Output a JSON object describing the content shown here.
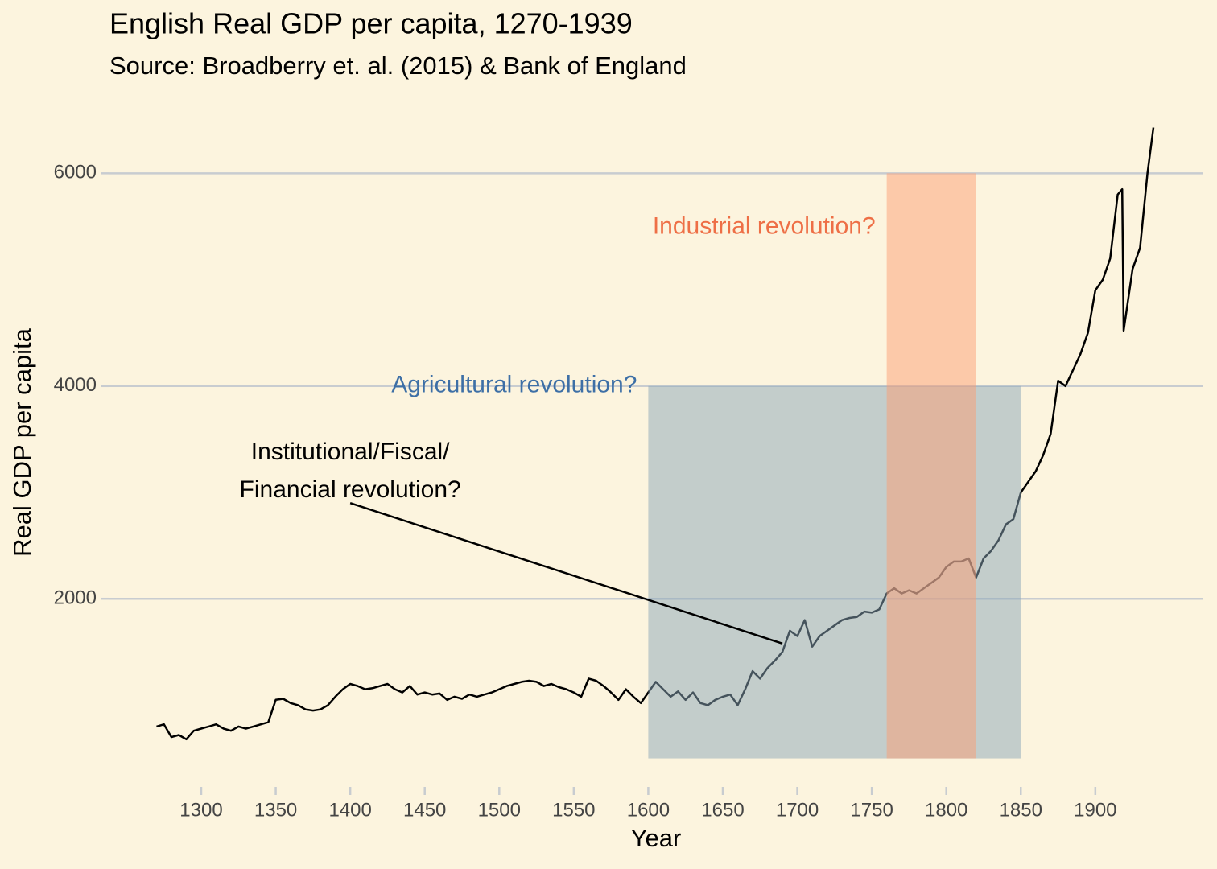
{
  "chart_data": {
    "type": "line",
    "title": "English Real GDP per capita, 1270-1939",
    "subtitle": "Source: Broadberry et. al. (2015) & Bank of England",
    "xlabel": "Year",
    "ylabel": "Real GDP per capita",
    "xlim": [
      1263,
      1946
    ],
    "ylim": [
      300,
      6600
    ],
    "xticks": [
      1300,
      1350,
      1400,
      1450,
      1500,
      1550,
      1600,
      1650,
      1700,
      1750,
      1800,
      1850,
      1900
    ],
    "yticks": [
      2000,
      4000,
      6000
    ],
    "grid": true,
    "x": [
      1270,
      1275,
      1280,
      1285,
      1290,
      1295,
      1300,
      1305,
      1310,
      1315,
      1320,
      1325,
      1330,
      1335,
      1340,
      1345,
      1350,
      1355,
      1360,
      1365,
      1370,
      1375,
      1380,
      1385,
      1390,
      1395,
      1400,
      1405,
      1410,
      1415,
      1420,
      1425,
      1430,
      1435,
      1440,
      1445,
      1450,
      1455,
      1460,
      1465,
      1470,
      1475,
      1480,
      1485,
      1490,
      1495,
      1500,
      1505,
      1510,
      1515,
      1520,
      1525,
      1530,
      1535,
      1540,
      1545,
      1550,
      1555,
      1560,
      1565,
      1570,
      1575,
      1580,
      1585,
      1590,
      1595,
      1600,
      1605,
      1610,
      1615,
      1620,
      1625,
      1630,
      1635,
      1640,
      1645,
      1650,
      1655,
      1660,
      1665,
      1670,
      1675,
      1680,
      1685,
      1690,
      1695,
      1700,
      1705,
      1710,
      1715,
      1720,
      1725,
      1730,
      1735,
      1740,
      1745,
      1750,
      1755,
      1760,
      1765,
      1770,
      1775,
      1780,
      1785,
      1790,
      1795,
      1800,
      1805,
      1810,
      1815,
      1820,
      1825,
      1830,
      1835,
      1840,
      1845,
      1850,
      1855,
      1860,
      1865,
      1870,
      1875,
      1880,
      1885,
      1890,
      1895,
      1900,
      1905,
      1910,
      1915,
      1918,
      1919,
      1925,
      1930,
      1935,
      1939
    ],
    "series": [
      {
        "name": "Real GDP per capita",
        "color": "#000000",
        "values": [
          800,
          820,
          700,
          720,
          680,
          760,
          780,
          800,
          820,
          780,
          760,
          800,
          780,
          800,
          820,
          840,
          1050,
          1060,
          1020,
          1000,
          960,
          950,
          960,
          1000,
          1080,
          1150,
          1200,
          1180,
          1150,
          1160,
          1180,
          1200,
          1150,
          1120,
          1180,
          1100,
          1120,
          1100,
          1110,
          1050,
          1080,
          1060,
          1100,
          1080,
          1100,
          1120,
          1150,
          1180,
          1200,
          1220,
          1230,
          1220,
          1180,
          1200,
          1170,
          1150,
          1120,
          1080,
          1250,
          1230,
          1180,
          1120,
          1050,
          1150,
          1080,
          1020,
          1120,
          1220,
          1150,
          1080,
          1130,
          1050,
          1120,
          1020,
          1000,
          1050,
          1080,
          1100,
          1000,
          1150,
          1320,
          1250,
          1350,
          1420,
          1500,
          1700,
          1650,
          1800,
          1550,
          1650,
          1700,
          1750,
          1800,
          1820,
          1830,
          1880,
          1870,
          1900,
          2050,
          2100,
          2050,
          2080,
          2050,
          2100,
          2150,
          2200,
          2300,
          2350,
          2350,
          2380,
          2200,
          2380,
          2450,
          2550,
          2700,
          2750,
          3000,
          3100,
          3200,
          3350,
          3550,
          4050,
          4000,
          4150,
          4300,
          4500,
          4900,
          5000,
          5200,
          5800,
          5850,
          4520,
          5100,
          5300,
          6000,
          6430
        ]
      }
    ],
    "regions": [
      {
        "label": "Agricultural revolution?",
        "x": [
          1600,
          1850
        ],
        "y": [
          500,
          4000
        ],
        "color": "#8aa5b8",
        "label_color": "#3d6fa6"
      },
      {
        "label": "Industrial revolution?",
        "x": [
          1760,
          1820
        ],
        "y": [
          500,
          6000
        ],
        "color": "#fb9e74",
        "label_color": "#ee6f46"
      }
    ],
    "annotation": {
      "text": [
        "Institutional/Fiscal/",
        "Financial revolution?"
      ],
      "xy": [
        1690,
        1580
      ],
      "xytext": [
        1400,
        2900
      ]
    }
  }
}
